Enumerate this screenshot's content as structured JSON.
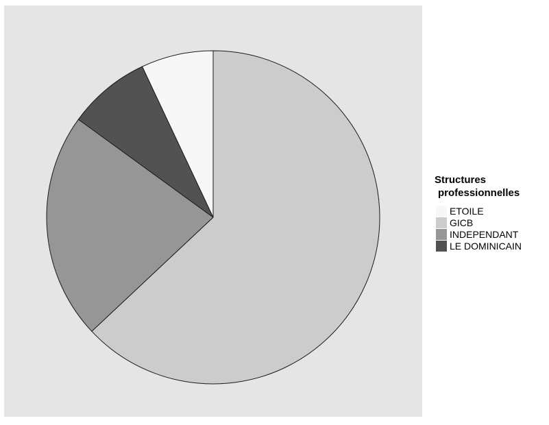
{
  "chart_data": {
    "type": "pie",
    "legend_title": [
      "Structures",
      "professionnelles"
    ],
    "legend_position": "right",
    "slices": [
      {
        "label": "ETOILE",
        "value": 7,
        "color": "#f7f7f7"
      },
      {
        "label": "GICB",
        "value": 63,
        "color": "#cccccc"
      },
      {
        "label": "INDEPENDANT",
        "value": 22,
        "color": "#969696"
      },
      {
        "label": "LE DOMINICAIN",
        "value": 8,
        "color": "#525252"
      }
    ],
    "slice_draw_order": [
      "GICB",
      "INDEPENDANT",
      "LE DOMINICAIN",
      "ETOILE"
    ],
    "panel_background": "#e5e5e5",
    "grid": false
  }
}
